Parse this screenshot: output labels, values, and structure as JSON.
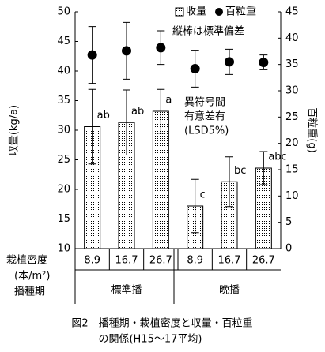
{
  "chart_data": {
    "type": "bar",
    "caption": [
      "図2　播種期・栽植密度と収量・百粒重",
      "の関係(H15～17平均)"
    ],
    "ylabel": "収量(kg/a)",
    "y2label": "百粒重(g)",
    "row_labels": [
      "栽植密度",
      "(本/m²)",
      "播種期"
    ],
    "categories": [
      "8.9",
      "16.7",
      "26.7",
      "8.9",
      "16.7",
      "26.7"
    ],
    "groups": [
      "標準播",
      "晩播"
    ],
    "series": [
      {
        "name": "收量",
        "type": "bar",
        "color": "#000000",
        "values": [
          30.6,
          31.3,
          33.2,
          17.2,
          21.3,
          23.6
        ],
        "errors": [
          6.3,
          5.5,
          3.7,
          4.5,
          4.2,
          2.8
        ],
        "value_labels": [
          "ab",
          "ab",
          "a",
          "c",
          "bc",
          "abc"
        ]
      },
      {
        "name": "百粒重",
        "type": "scatter",
        "axis": "y2",
        "color": "#000000",
        "values": [
          36.8,
          37.6,
          38.2,
          34.2,
          35.5,
          35.4
        ],
        "errors": [
          5.4,
          5.4,
          3.2,
          3.5,
          2.4,
          1.4
        ]
      }
    ],
    "ylim": [
      10,
      50
    ],
    "yticks": [
      10,
      15,
      20,
      25,
      30,
      35,
      40,
      45,
      50
    ],
    "y2lim": [
      0,
      45
    ],
    "y2ticks": [
      0,
      5,
      10,
      15,
      20,
      25,
      30,
      35,
      40,
      45
    ],
    "legend": "top-right",
    "annotations": [
      "縦棒は標準偏差",
      "異符号間",
      "有意差有",
      "(LSD5%)"
    ]
  }
}
